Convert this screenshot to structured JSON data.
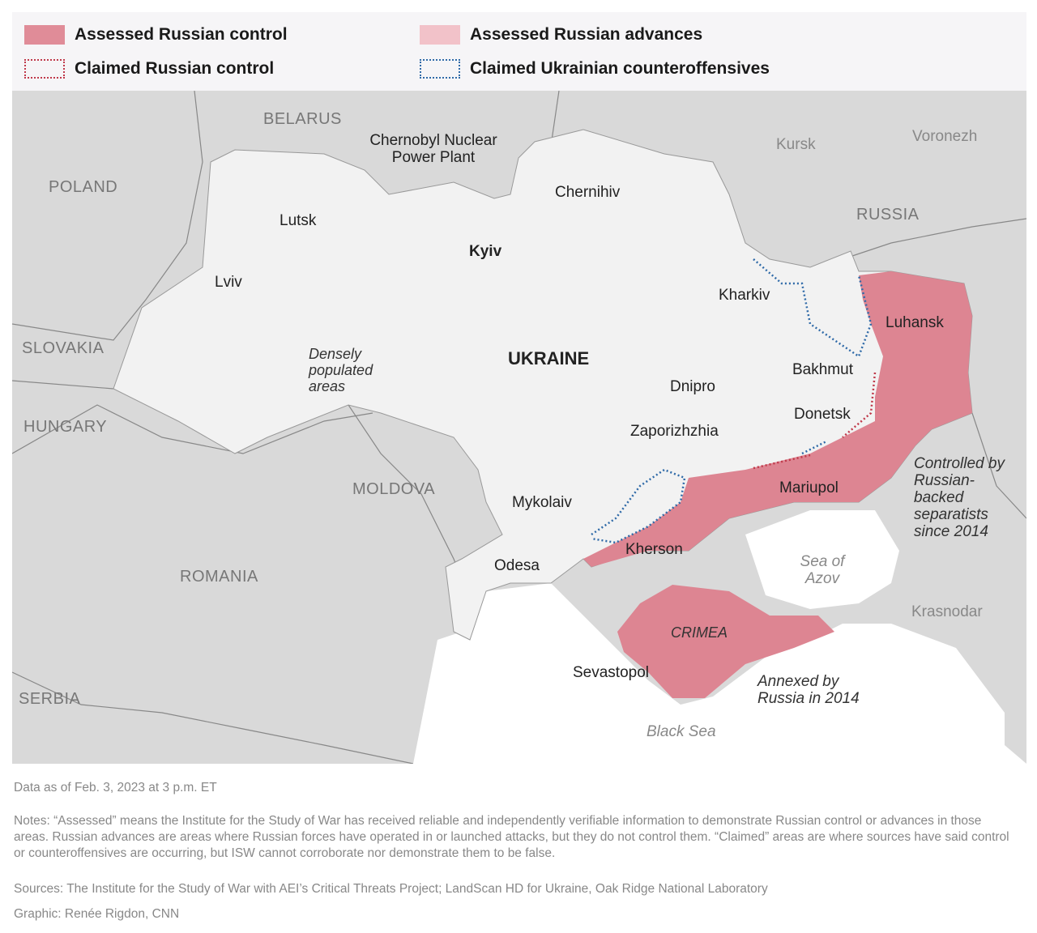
{
  "legend": {
    "items": [
      {
        "label": "Assessed Russian control",
        "style": "fill",
        "color": "#e08c98"
      },
      {
        "label": "Assessed Russian advances",
        "style": "fill",
        "color": "#f2c2c9"
      },
      {
        "label": "Claimed Russian control",
        "style": "dotted",
        "color": "#c0394a"
      },
      {
        "label": "Claimed Ukrainian counteroffensives",
        "style": "dotted",
        "color": "#2f6aa8"
      }
    ]
  },
  "map": {
    "colors": {
      "land": "#f2f2f2",
      "neighbors": "#d6d6d6",
      "water": "#ffffff",
      "russian_control": "#dd8592",
      "claimed_ua": "#2f6aa8",
      "claimed_ru": "#c0394a"
    },
    "countries": [
      "BELARUS",
      "POLAND",
      "RUSSIA",
      "SLOVAKIA",
      "HUNGARY",
      "MOLDOVA",
      "ROMANIA",
      "SERBIA",
      "UKRAINE"
    ],
    "cities": [
      "Chernobyl Nuclear Power Plant",
      "Chernihiv",
      "Lutsk",
      "Kyiv",
      "Lviv",
      "Kharkiv",
      "Luhansk",
      "Bakhmut",
      "Dnipro",
      "Donetsk",
      "Zaporizhzhia",
      "Mariupol",
      "Mykolaiv",
      "Kherson",
      "Odesa",
      "Sevastopol",
      "Kursk",
      "Voronezh",
      "Krasnodar"
    ],
    "annotations": {
      "dense": "Densely populated areas",
      "separatists": "Controlled by Russian-backed separatists since 2014",
      "annexed": "Annexed by Russia in 2014",
      "crimea": "CRIMEA"
    },
    "water": {
      "azov": "Sea of Azov",
      "black": "Black Sea"
    }
  },
  "footer": {
    "date": "Data as of Feb. 3, 2023 at 3 p.m. ET",
    "notes": "Notes: “Assessed” means the Institute for the Study of War has received reliable and independently verifiable information to demonstrate Russian control or advances in those areas. Russian advances are areas where Russian forces have operated in or launched attacks, but they do not control them. “Claimed” areas are where sources have said control or counteroffensives are occurring, but ISW cannot corroborate nor demonstrate them to be false.",
    "sources": "Sources: The Institute for the Study of War with AEI’s Critical Threats Project; LandScan HD for Ukraine, Oak Ridge National Laboratory",
    "credit": "Graphic: Renée Rigdon, CNN"
  }
}
